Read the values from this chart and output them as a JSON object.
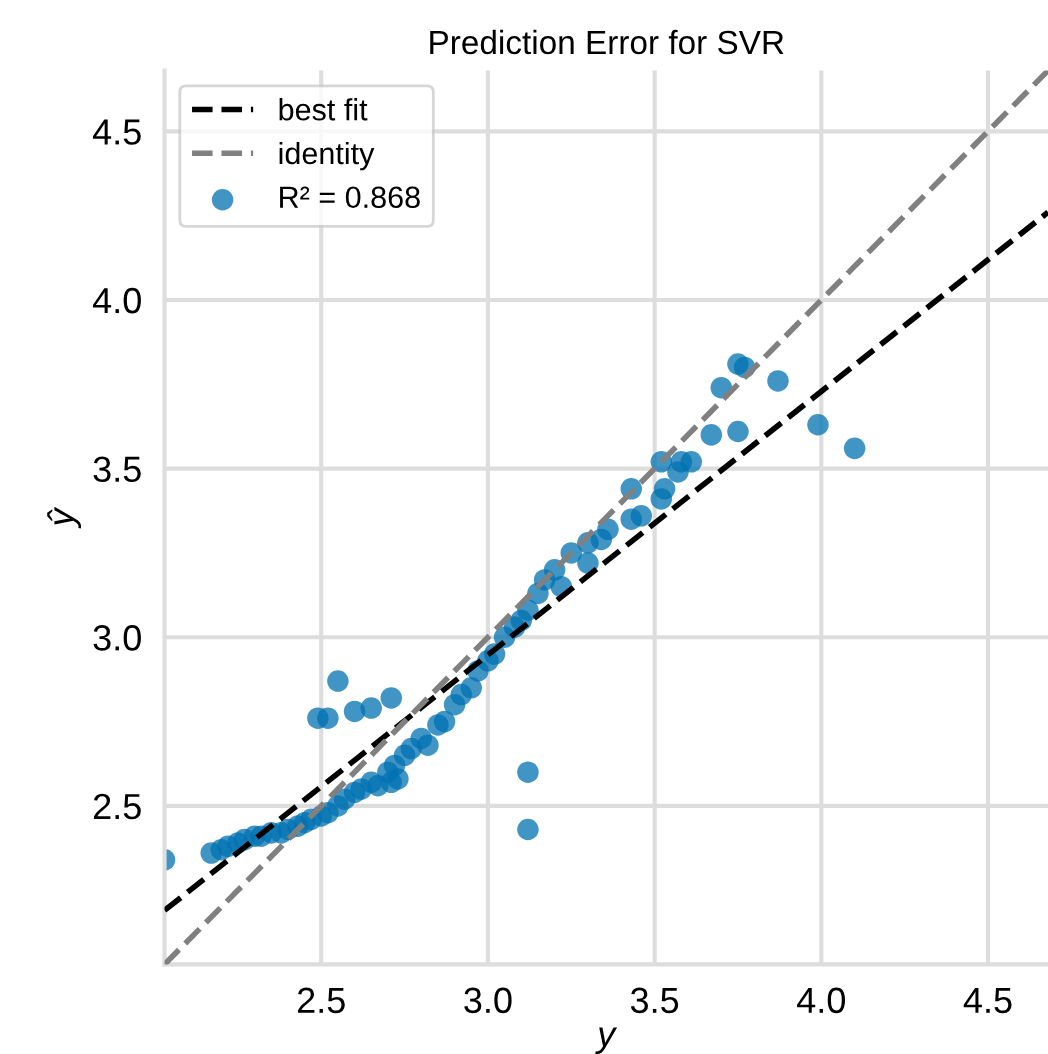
{
  "chart_data": {
    "type": "scatter",
    "title": "Prediction Error for SVR",
    "xlabel": "y",
    "ylabel": "ŷ",
    "xlim": [
      2.03,
      4.68
    ],
    "ylim": [
      2.03,
      4.68
    ],
    "xticks": [
      2.5,
      {
        "value": 3,
        "label": "3.0"
      },
      3.5,
      {
        "value": 4,
        "label": "4.0"
      },
      4.5
    ],
    "yticks": [
      2.5,
      {
        "value": 3,
        "label": "3.0"
      },
      3.5,
      {
        "value": 4,
        "label": "4.0"
      },
      4.5
    ],
    "grid": true,
    "legend": "top left",
    "series": [
      {
        "name": "best fit",
        "type": "line",
        "color": "#000000",
        "line_style": "dashed",
        "x": [
          2.03,
          4.68
        ],
        "values": [
          2.19,
          4.26
        ]
      },
      {
        "name": "identity",
        "type": "line",
        "color": "#808080",
        "line_style": "dashed",
        "x": [
          2.03,
          4.68
        ],
        "values": [
          2.03,
          4.68
        ]
      },
      {
        "name": "R² = 0.868",
        "marker": "circle",
        "color": "#0072b2",
        "x": [
          2.03,
          2.17,
          2.2,
          2.22,
          2.25,
          2.27,
          2.3,
          2.32,
          2.35,
          2.38,
          2.4,
          2.43,
          2.45,
          2.47,
          2.5,
          2.52,
          2.55,
          2.57,
          2.6,
          2.62,
          2.65,
          2.67,
          2.7,
          2.72,
          2.73,
          2.75,
          2.77,
          2.8,
          2.82,
          2.85,
          2.87,
          2.9,
          2.92,
          2.95,
          2.97,
          3.0,
          3.02,
          3.05,
          3.08,
          3.1,
          3.12,
          3.15,
          3.17,
          2.49,
          2.52,
          2.55,
          2.6,
          2.65,
          2.71,
          2.71,
          3.12,
          3.12,
          4.1,
          3.99,
          3.87,
          3.75,
          3.77,
          3.7,
          3.75,
          3.67,
          3.61,
          3.58,
          3.52,
          3.57,
          3.53,
          3.52,
          3.43,
          3.46,
          3.43,
          3.36,
          3.34,
          3.2,
          3.25,
          3.3,
          3.3,
          3.22
        ],
        "values": [
          2.34,
          2.36,
          2.37,
          2.38,
          2.39,
          2.4,
          2.41,
          2.41,
          2.42,
          2.42,
          2.43,
          2.44,
          2.45,
          2.46,
          2.47,
          2.48,
          2.5,
          2.52,
          2.54,
          2.55,
          2.57,
          2.56,
          2.6,
          2.62,
          2.58,
          2.65,
          2.67,
          2.7,
          2.68,
          2.74,
          2.75,
          2.8,
          2.83,
          2.85,
          2.9,
          2.93,
          2.95,
          3.0,
          3.03,
          3.05,
          3.08,
          3.13,
          3.17,
          2.76,
          2.76,
          2.87,
          2.78,
          2.79,
          2.82,
          2.57,
          2.6,
          2.43,
          3.56,
          3.63,
          3.76,
          3.81,
          3.8,
          3.74,
          3.61,
          3.6,
          3.52,
          3.52,
          3.52,
          3.49,
          3.44,
          3.41,
          3.44,
          3.36,
          3.35,
          3.32,
          3.29,
          3.2,
          3.25,
          3.28,
          3.22,
          3.15
        ]
      }
    ]
  }
}
